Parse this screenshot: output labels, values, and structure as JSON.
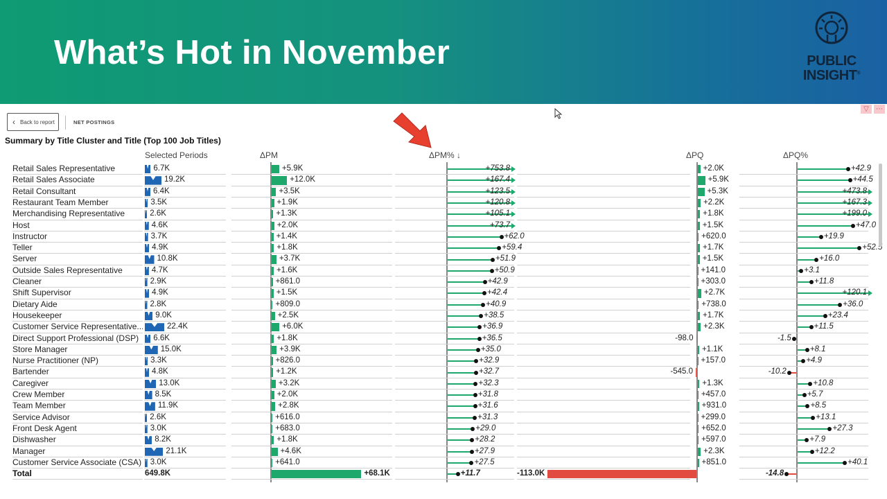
{
  "header": {
    "title": "What’s Hot in November"
  },
  "logo": {
    "line1": "PUBLIC",
    "line2": "INSIGHT",
    "mark": "®"
  },
  "toolbar": {
    "back_label": "Back to report",
    "tab_label": "NET POSTINGS"
  },
  "visual": {
    "title": "Summary by Title Cluster and Title (Top 100 Job Titles)",
    "columns": {
      "selected": "Selected Periods",
      "dpm": "ΔPM",
      "dpmpct": "ΔPM% ↓",
      "dpq": "ΔPQ",
      "dpqpct": "ΔPQ%"
    }
  },
  "colors": {
    "blue": "#1f66b5",
    "green": "#1ea86b",
    "red": "#e24b3f",
    "axis": "#888888"
  },
  "rows": [
    {
      "label": "Retail Sales Representative",
      "sel": 6.7,
      "sel_text": "6.7K",
      "dpm": 5.9,
      "dpm_text": "+5.9K",
      "dpmpct": 753.8,
      "dpmpct_text": "+753.8",
      "dpq": 2.0,
      "dpq_text": "+2.0K",
      "dpqpct": 42.9,
      "dpqpct_text": "+42.9"
    },
    {
      "label": "Retail Sales Associate",
      "sel": 19.2,
      "sel_text": "19.2K",
      "dpm": 12.0,
      "dpm_text": "+12.0K",
      "dpmpct": 167.4,
      "dpmpct_text": "+167.4",
      "dpq": 5.9,
      "dpq_text": "+5.9K",
      "dpqpct": 44.5,
      "dpqpct_text": "+44.5"
    },
    {
      "label": "Retail Consultant",
      "sel": 6.4,
      "sel_text": "6.4K",
      "dpm": 3.5,
      "dpm_text": "+3.5K",
      "dpmpct": 123.5,
      "dpmpct_text": "+123.5",
      "dpq": 5.3,
      "dpq_text": "+5.3K",
      "dpqpct": 473.8,
      "dpqpct_text": "+473.8"
    },
    {
      "label": "Restaurant Team Member",
      "sel": 3.5,
      "sel_text": "3.5K",
      "dpm": 1.9,
      "dpm_text": "+1.9K",
      "dpmpct": 120.8,
      "dpmpct_text": "+120.8",
      "dpq": 2.2,
      "dpq_text": "+2.2K",
      "dpqpct": 167.3,
      "dpqpct_text": "+167.3"
    },
    {
      "label": "Merchandising Representative",
      "sel": 2.6,
      "sel_text": "2.6K",
      "dpm": 1.3,
      "dpm_text": "+1.3K",
      "dpmpct": 105.1,
      "dpmpct_text": "+105.1",
      "dpq": 1.8,
      "dpq_text": "+1.8K",
      "dpqpct": 199.0,
      "dpqpct_text": "+199.0"
    },
    {
      "label": "Host",
      "sel": 4.6,
      "sel_text": "4.6K",
      "dpm": 2.0,
      "dpm_text": "+2.0K",
      "dpmpct": 73.7,
      "dpmpct_text": "+73.7",
      "dpq": 1.5,
      "dpq_text": "+1.5K",
      "dpqpct": 47.0,
      "dpqpct_text": "+47.0"
    },
    {
      "label": "Instructor",
      "sel": 3.7,
      "sel_text": "3.7K",
      "dpm": 1.4,
      "dpm_text": "+1.4K",
      "dpmpct": 62.0,
      "dpmpct_text": "+62.0",
      "dpq": 0.62,
      "dpq_text": "+620.0",
      "dpqpct": 19.9,
      "dpqpct_text": "+19.9"
    },
    {
      "label": "Teller",
      "sel": 4.9,
      "sel_text": "4.9K",
      "dpm": 1.8,
      "dpm_text": "+1.8K",
      "dpmpct": 59.4,
      "dpmpct_text": "+59.4",
      "dpq": 1.7,
      "dpq_text": "+1.7K",
      "dpqpct": 52.5,
      "dpqpct_text": "+52.5"
    },
    {
      "label": "Server",
      "sel": 10.8,
      "sel_text": "10.8K",
      "dpm": 3.7,
      "dpm_text": "+3.7K",
      "dpmpct": 51.9,
      "dpmpct_text": "+51.9",
      "dpq": 1.5,
      "dpq_text": "+1.5K",
      "dpqpct": 16.0,
      "dpqpct_text": "+16.0"
    },
    {
      "label": "Outside Sales Representative",
      "sel": 4.7,
      "sel_text": "4.7K",
      "dpm": 1.6,
      "dpm_text": "+1.6K",
      "dpmpct": 50.9,
      "dpmpct_text": "+50.9",
      "dpq": 0.141,
      "dpq_text": "+141.0",
      "dpqpct": 3.1,
      "dpqpct_text": "+3.1"
    },
    {
      "label": "Cleaner",
      "sel": 2.9,
      "sel_text": "2.9K",
      "dpm": 0.861,
      "dpm_text": "+861.0",
      "dpmpct": 42.9,
      "dpmpct_text": "+42.9",
      "dpq": 0.303,
      "dpq_text": "+303.0",
      "dpqpct": 11.8,
      "dpqpct_text": "+11.8"
    },
    {
      "label": "Shift Supervisor",
      "sel": 4.9,
      "sel_text": "4.9K",
      "dpm": 1.5,
      "dpm_text": "+1.5K",
      "dpmpct": 42.4,
      "dpmpct_text": "+42.4",
      "dpq": 2.7,
      "dpq_text": "+2.7K",
      "dpqpct": 120.1,
      "dpqpct_text": "+120.1"
    },
    {
      "label": "Dietary Aide",
      "sel": 2.8,
      "sel_text": "2.8K",
      "dpm": 0.809,
      "dpm_text": "+809.0",
      "dpmpct": 40.9,
      "dpmpct_text": "+40.9",
      "dpq": 0.738,
      "dpq_text": "+738.0",
      "dpqpct": 36.0,
      "dpqpct_text": "+36.0"
    },
    {
      "label": "Housekeeper",
      "sel": 9.0,
      "sel_text": "9.0K",
      "dpm": 2.5,
      "dpm_text": "+2.5K",
      "dpmpct": 38.5,
      "dpmpct_text": "+38.5",
      "dpq": 1.7,
      "dpq_text": "+1.7K",
      "dpqpct": 23.4,
      "dpqpct_text": "+23.4"
    },
    {
      "label": "Customer Service Representative...",
      "sel": 22.4,
      "sel_text": "22.4K",
      "dpm": 6.0,
      "dpm_text": "+6.0K",
      "dpmpct": 36.9,
      "dpmpct_text": "+36.9",
      "dpq": 2.3,
      "dpq_text": "+2.3K",
      "dpqpct": 11.5,
      "dpqpct_text": "+11.5"
    },
    {
      "label": "Direct Support Professional (DSP)",
      "sel": 6.6,
      "sel_text": "6.6K",
      "dpm": 1.8,
      "dpm_text": "+1.8K",
      "dpmpct": 36.5,
      "dpmpct_text": "+36.5",
      "dpq": -0.098,
      "dpq_text": "-98.0",
      "dpqpct": -1.5,
      "dpqpct_text": "-1.5"
    },
    {
      "label": "Store Manager",
      "sel": 15.0,
      "sel_text": "15.0K",
      "dpm": 3.9,
      "dpm_text": "+3.9K",
      "dpmpct": 35.0,
      "dpmpct_text": "+35.0",
      "dpq": 1.1,
      "dpq_text": "+1.1K",
      "dpqpct": 8.1,
      "dpqpct_text": "+8.1"
    },
    {
      "label": "Nurse Practitioner (NP)",
      "sel": 3.3,
      "sel_text": "3.3K",
      "dpm": 0.826,
      "dpm_text": "+826.0",
      "dpmpct": 32.9,
      "dpmpct_text": "+32.9",
      "dpq": 0.157,
      "dpq_text": "+157.0",
      "dpqpct": 4.9,
      "dpqpct_text": "+4.9"
    },
    {
      "label": "Bartender",
      "sel": 4.8,
      "sel_text": "4.8K",
      "dpm": 1.2,
      "dpm_text": "+1.2K",
      "dpmpct": 32.7,
      "dpmpct_text": "+32.7",
      "dpq": -0.545,
      "dpq_text": "-545.0",
      "dpqpct": -10.2,
      "dpqpct_text": "-10.2"
    },
    {
      "label": "Caregiver",
      "sel": 13.0,
      "sel_text": "13.0K",
      "dpm": 3.2,
      "dpm_text": "+3.2K",
      "dpmpct": 32.3,
      "dpmpct_text": "+32.3",
      "dpq": 1.3,
      "dpq_text": "+1.3K",
      "dpqpct": 10.8,
      "dpqpct_text": "+10.8"
    },
    {
      "label": "Crew Member",
      "sel": 8.5,
      "sel_text": "8.5K",
      "dpm": 2.0,
      "dpm_text": "+2.0K",
      "dpmpct": 31.8,
      "dpmpct_text": "+31.8",
      "dpq": 0.457,
      "dpq_text": "+457.0",
      "dpqpct": 5.7,
      "dpqpct_text": "+5.7"
    },
    {
      "label": "Team Member",
      "sel": 11.9,
      "sel_text": "11.9K",
      "dpm": 2.8,
      "dpm_text": "+2.8K",
      "dpmpct": 31.6,
      "dpmpct_text": "+31.6",
      "dpq": 0.931,
      "dpq_text": "+931.0",
      "dpqpct": 8.5,
      "dpqpct_text": "+8.5"
    },
    {
      "label": "Service Advisor",
      "sel": 2.6,
      "sel_text": "2.6K",
      "dpm": 0.616,
      "dpm_text": "+616.0",
      "dpmpct": 31.3,
      "dpmpct_text": "+31.3",
      "dpq": 0.299,
      "dpq_text": "+299.0",
      "dpqpct": 13.1,
      "dpqpct_text": "+13.1"
    },
    {
      "label": "Front Desk Agent",
      "sel": 3.0,
      "sel_text": "3.0K",
      "dpm": 0.683,
      "dpm_text": "+683.0",
      "dpmpct": 29.0,
      "dpmpct_text": "+29.0",
      "dpq": 0.652,
      "dpq_text": "+652.0",
      "dpqpct": 27.3,
      "dpqpct_text": "+27.3"
    },
    {
      "label": "Dishwasher",
      "sel": 8.2,
      "sel_text": "8.2K",
      "dpm": 1.8,
      "dpm_text": "+1.8K",
      "dpmpct": 28.2,
      "dpmpct_text": "+28.2",
      "dpq": 0.597,
      "dpq_text": "+597.0",
      "dpqpct": 7.9,
      "dpqpct_text": "+7.9"
    },
    {
      "label": "Manager",
      "sel": 21.1,
      "sel_text": "21.1K",
      "dpm": 4.6,
      "dpm_text": "+4.6K",
      "dpmpct": 27.9,
      "dpmpct_text": "+27.9",
      "dpq": 2.3,
      "dpq_text": "+2.3K",
      "dpqpct": 12.2,
      "dpqpct_text": "+12.2"
    },
    {
      "label": "Customer Service Associate (CSA)",
      "sel": 3.0,
      "sel_text": "3.0K",
      "dpm": 0.641,
      "dpm_text": "+641.0",
      "dpmpct": 27.5,
      "dpmpct_text": "+27.5",
      "dpq": 0.851,
      "dpq_text": "+851.0",
      "dpqpct": 40.1,
      "dpqpct_text": "+40.1"
    }
  ],
  "total": {
    "label": "Total",
    "sel_text": "649.8K",
    "dpm": 68.1,
    "dpm_text": "+68.1K",
    "dpmpct": 11.7,
    "dpmpct_text": "+11.7",
    "dpq": -113.0,
    "dpq_text": "-113.0K",
    "dpqpct": -14.8,
    "dpqpct_text": "-14.8"
  }
}
